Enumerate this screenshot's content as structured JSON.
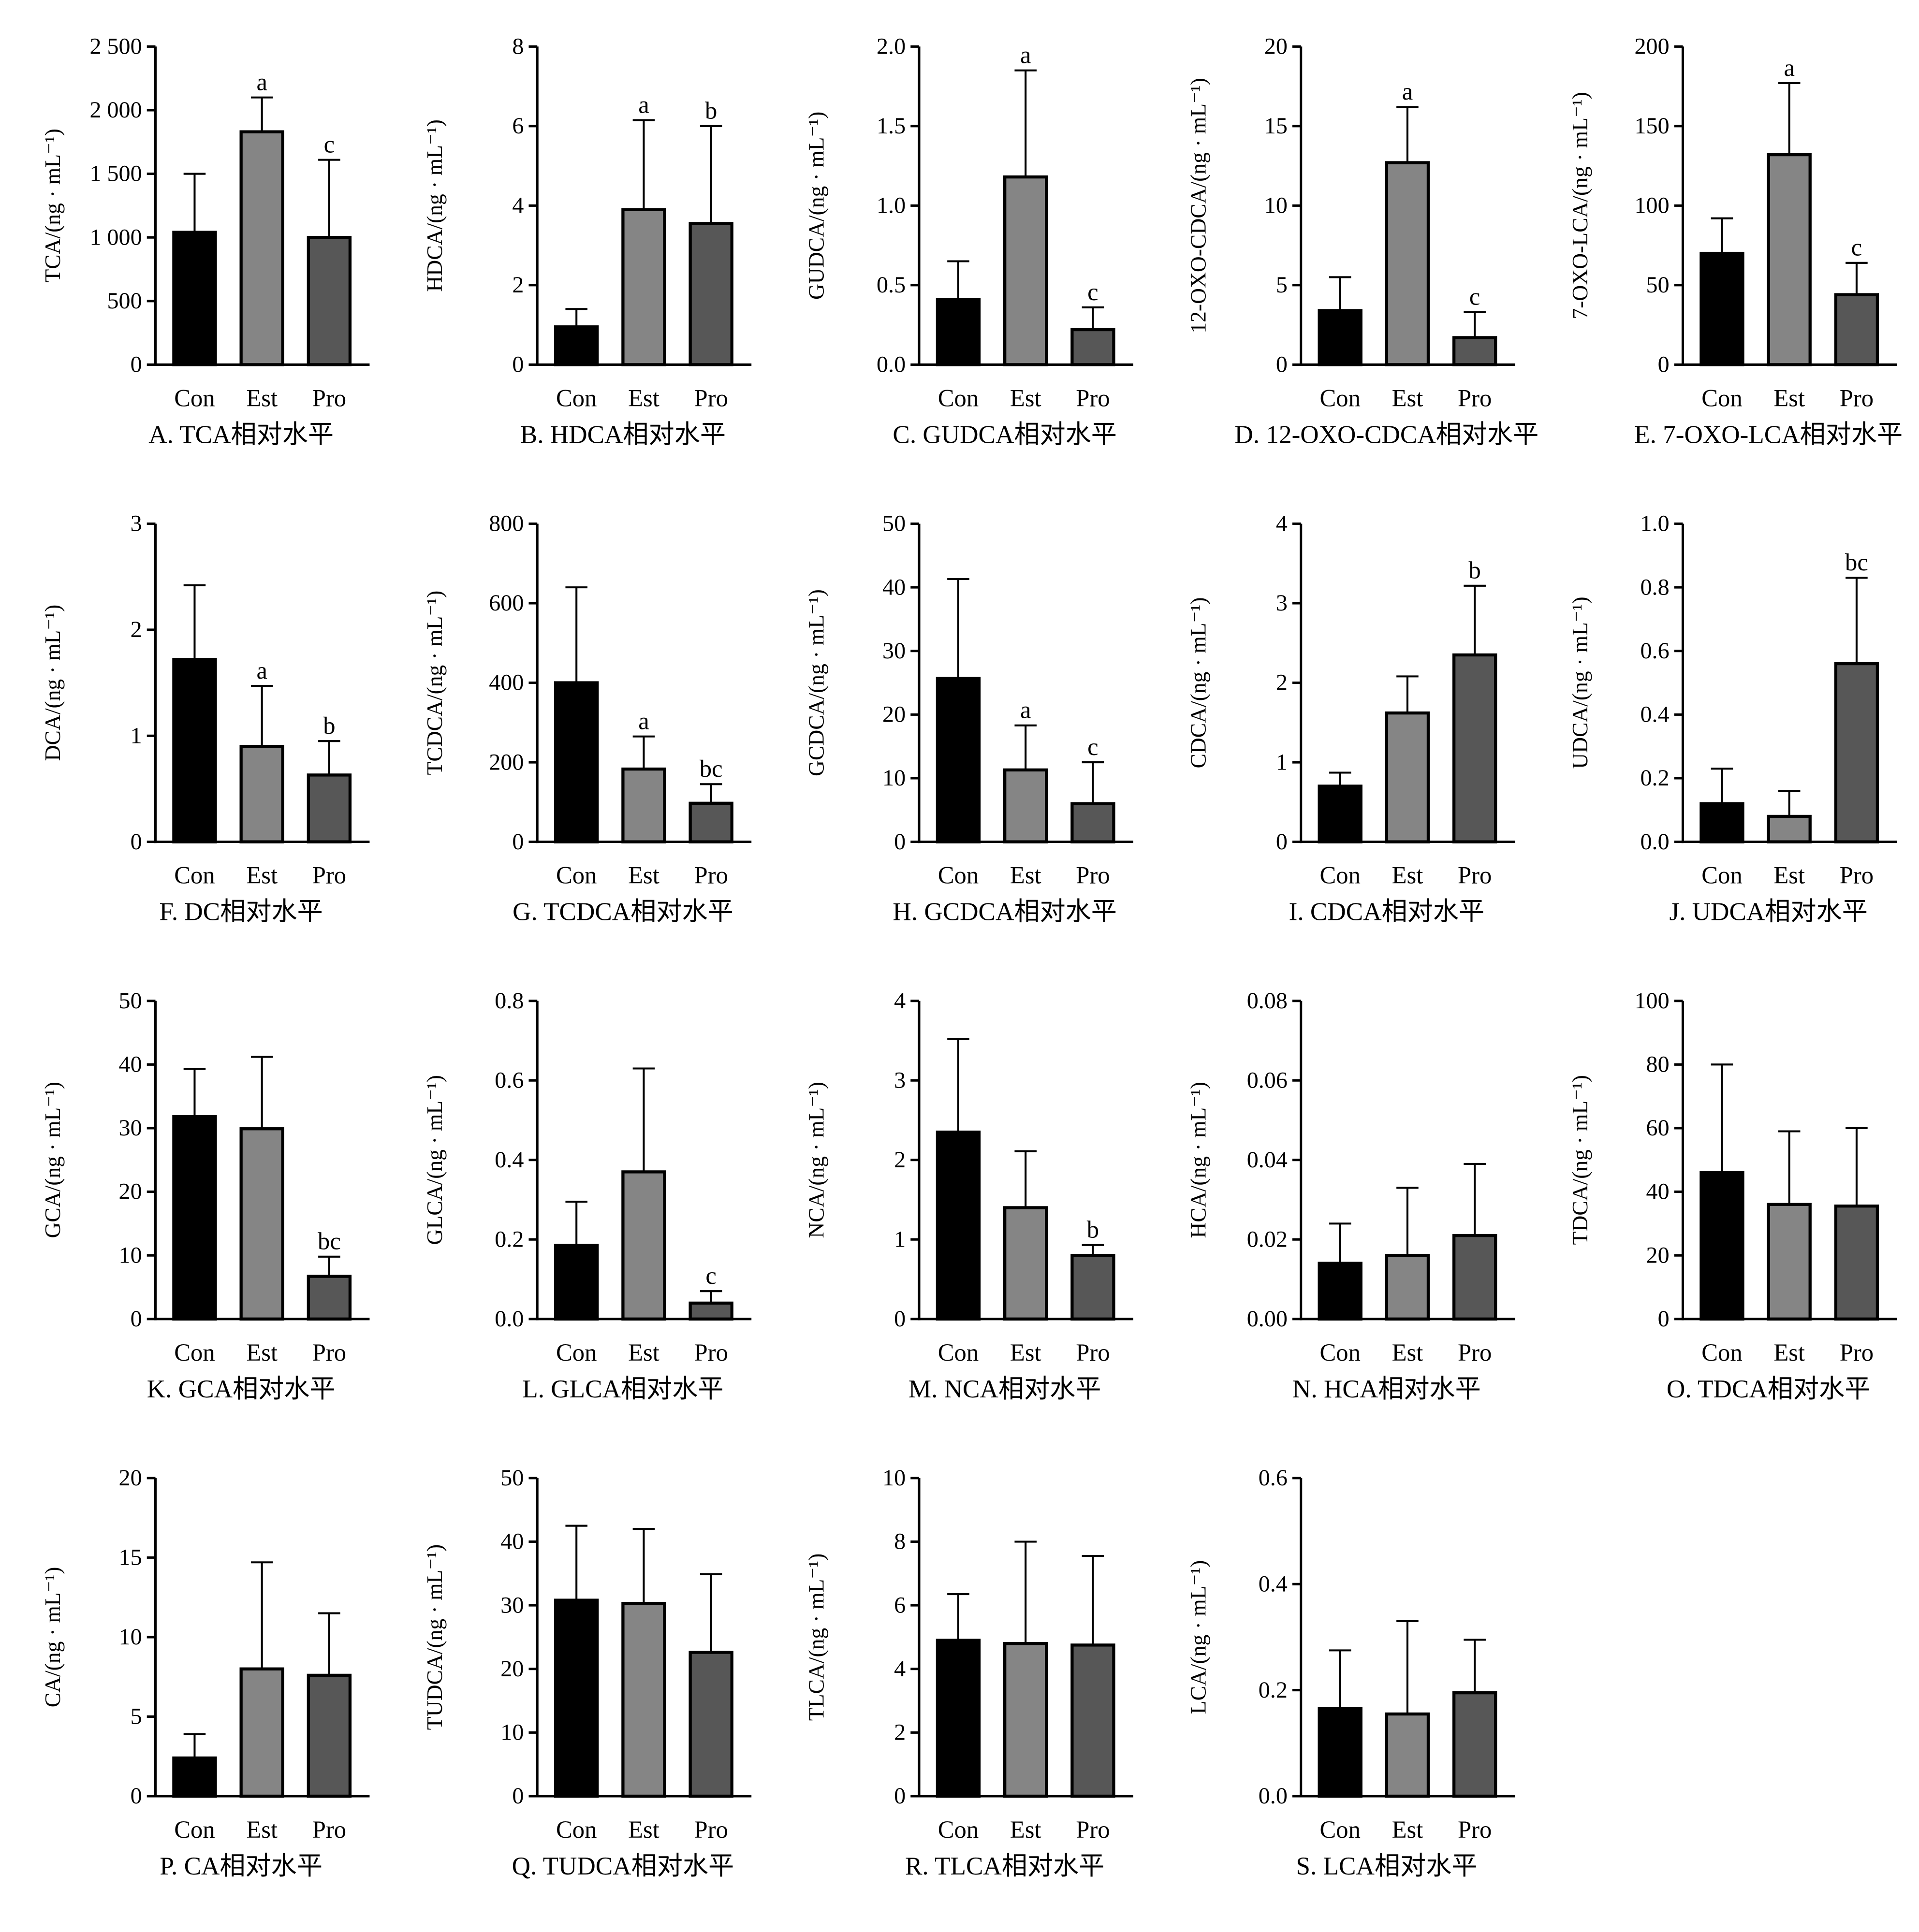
{
  "categories": [
    "Con",
    "Est",
    "Pro"
  ],
  "colors": {
    "Con": "#000000",
    "Est": "#858585",
    "Pro": "#575757"
  },
  "chart_data": [
    {
      "type": "bar",
      "title": "A. TCA相对水平",
      "ylabel": "TCA/(ng · mL⁻¹)",
      "ylim": [
        0,
        2500
      ],
      "yticks": [
        0,
        500,
        1000,
        1500,
        2000,
        2500
      ],
      "ytick_labels": [
        "0",
        "500",
        "1 000",
        "1 500",
        "2 000",
        "2 500"
      ],
      "values": [
        1040,
        1830,
        1000
      ],
      "error_upper": [
        1500,
        2100,
        1610
      ],
      "significance": [
        "",
        "a",
        "c"
      ]
    },
    {
      "type": "bar",
      "title": "B. HDCA相对水平",
      "ylabel": "HDCA/(ng · mL⁻¹)",
      "ylim": [
        0,
        8
      ],
      "yticks": [
        0,
        2,
        4,
        6,
        8
      ],
      "ytick_labels": [
        "0",
        "2",
        "4",
        "6",
        "8"
      ],
      "values": [
        0.95,
        3.9,
        3.55
      ],
      "error_upper": [
        1.4,
        6.15,
        6.0
      ],
      "significance": [
        "",
        "a",
        "b"
      ]
    },
    {
      "type": "bar",
      "title": "C. GUDCA相对水平",
      "ylabel": "GUDCA/(ng · mL⁻¹)",
      "ylim": [
        0,
        2
      ],
      "yticks": [
        0,
        0.5,
        1,
        1.5,
        2
      ],
      "ytick_labels": [
        "0.0",
        "0.5",
        "1.0",
        "1.5",
        "2.0"
      ],
      "values": [
        0.41,
        1.18,
        0.22
      ],
      "error_upper": [
        0.65,
        1.85,
        0.36
      ],
      "significance": [
        "",
        "a",
        "c"
      ]
    },
    {
      "type": "bar",
      "title": "D. 12-OXO-CDCA相对水平",
      "ylabel": "12-OXO-CDCA/(ng · mL⁻¹)",
      "ylim": [
        0,
        20
      ],
      "yticks": [
        0,
        5,
        10,
        15,
        20
      ],
      "ytick_labels": [
        "0",
        "5",
        "10",
        "15",
        "20"
      ],
      "values": [
        3.4,
        12.7,
        1.7
      ],
      "error_upper": [
        5.5,
        16.2,
        3.3
      ],
      "significance": [
        "",
        "a",
        "c"
      ]
    },
    {
      "type": "bar",
      "title": "E. 7-OXO-LCA相对水平",
      "ylabel": "7-OXO-LCA/(ng · mL⁻¹)",
      "ylim": [
        0,
        200
      ],
      "yticks": [
        0,
        50,
        100,
        150,
        200
      ],
      "ytick_labels": [
        "0",
        "50",
        "100",
        "150",
        "200"
      ],
      "values": [
        70,
        132,
        44
      ],
      "error_upper": [
        92,
        177,
        64
      ],
      "significance": [
        "",
        "a",
        "c"
      ]
    },
    {
      "type": "bar",
      "title": "F. DC相对水平",
      "ylabel": "DCA/(ng · mL⁻¹)",
      "ylim": [
        0,
        3
      ],
      "yticks": [
        0,
        1,
        2,
        3
      ],
      "ytick_labels": [
        "0",
        "1",
        "2",
        "3"
      ],
      "values": [
        1.72,
        0.9,
        0.63
      ],
      "error_upper": [
        2.42,
        1.47,
        0.95
      ],
      "significance": [
        "",
        "a",
        "b"
      ]
    },
    {
      "type": "bar",
      "title": "G. TCDCA相对水平",
      "ylabel": "TCDCA/(ng · mL⁻¹)",
      "ylim": [
        0,
        800
      ],
      "yticks": [
        0,
        200,
        400,
        600,
        800
      ],
      "ytick_labels": [
        "0",
        "200",
        "400",
        "600",
        "800"
      ],
      "values": [
        400,
        183,
        97
      ],
      "error_upper": [
        640,
        265,
        145
      ],
      "significance": [
        "",
        "a",
        "bc"
      ]
    },
    {
      "type": "bar",
      "title": "H. GCDCA相对水平",
      "ylabel": "GCDCA/(ng · mL⁻¹)",
      "ylim": [
        0,
        50
      ],
      "yticks": [
        0,
        10,
        20,
        30,
        40,
        50
      ],
      "ytick_labels": [
        "0",
        "10",
        "20",
        "30",
        "40",
        "50"
      ],
      "values": [
        25.7,
        11.3,
        6
      ],
      "error_upper": [
        41.3,
        18.3,
        12.5
      ],
      "significance": [
        "",
        "a",
        "c"
      ]
    },
    {
      "type": "bar",
      "title": "I. CDCA相对水平",
      "ylabel": "CDCA/(ng · mL⁻¹)",
      "ylim": [
        0,
        4
      ],
      "yticks": [
        0,
        1,
        2,
        3,
        4
      ],
      "ytick_labels": [
        "0",
        "1",
        "2",
        "3",
        "4"
      ],
      "values": [
        0.7,
        1.62,
        2.35
      ],
      "error_upper": [
        0.87,
        2.08,
        3.22
      ],
      "significance": [
        "",
        "",
        "b"
      ]
    },
    {
      "type": "bar",
      "title": "J. UDCA相对水平",
      "ylabel": "UDCA/(ng · mL⁻¹)",
      "ylim": [
        0,
        1
      ],
      "yticks": [
        0,
        0.2,
        0.4,
        0.6,
        0.8,
        1
      ],
      "ytick_labels": [
        "0.0",
        "0.2",
        "0.4",
        "0.6",
        "0.8",
        "1.0"
      ],
      "values": [
        0.12,
        0.08,
        0.56
      ],
      "error_upper": [
        0.23,
        0.16,
        0.83
      ],
      "significance": [
        "",
        "",
        "bc"
      ]
    },
    {
      "type": "bar",
      "title": "K. GCA相对水平",
      "ylabel": "GCA/(ng · mL⁻¹)",
      "ylim": [
        0,
        50
      ],
      "yticks": [
        0,
        10,
        20,
        30,
        40,
        50
      ],
      "ytick_labels": [
        "0",
        "10",
        "20",
        "30",
        "40",
        "50"
      ],
      "values": [
        31.8,
        29.9,
        6.7
      ],
      "error_upper": [
        39.3,
        41.2,
        9.8
      ],
      "significance": [
        "",
        "",
        "bc"
      ]
    },
    {
      "type": "bar",
      "title": "L. GLCA相对水平",
      "ylabel": "GLCA/(ng · mL⁻¹)",
      "ylim": [
        0,
        0.8
      ],
      "yticks": [
        0,
        0.2,
        0.4,
        0.6,
        0.8
      ],
      "ytick_labels": [
        "0.0",
        "0.2",
        "0.4",
        "0.6",
        "0.8"
      ],
      "values": [
        0.185,
        0.37,
        0.04
      ],
      "error_upper": [
        0.295,
        0.63,
        0.07
      ],
      "significance": [
        "",
        "",
        "c"
      ]
    },
    {
      "type": "bar",
      "title": "M. NCA相对水平",
      "ylabel": "NCA/(ng · mL⁻¹)",
      "ylim": [
        0,
        4
      ],
      "yticks": [
        0,
        1,
        2,
        3,
        4
      ],
      "ytick_labels": [
        "0",
        "1",
        "2",
        "3",
        "4"
      ],
      "values": [
        2.35,
        1.4,
        0.8
      ],
      "error_upper": [
        3.52,
        2.11,
        0.93
      ],
      "significance": [
        "",
        "",
        "b"
      ]
    },
    {
      "type": "bar",
      "title": "N. HCA相对水平",
      "ylabel": "HCA/(ng · mL⁻¹)",
      "ylim": [
        0,
        0.08
      ],
      "yticks": [
        0,
        0.02,
        0.04,
        0.06,
        0.08
      ],
      "ytick_labels": [
        "0.00",
        "0.02",
        "0.04",
        "0.06",
        "0.08"
      ],
      "values": [
        0.014,
        0.016,
        0.021
      ],
      "error_upper": [
        0.024,
        0.033,
        0.039
      ],
      "significance": [
        "",
        "",
        ""
      ]
    },
    {
      "type": "bar",
      "title": "O. TDCA相对水平",
      "ylabel": "TDCA/(ng · mL⁻¹)",
      "ylim": [
        0,
        100
      ],
      "yticks": [
        0,
        20,
        40,
        60,
        80,
        100
      ],
      "ytick_labels": [
        "0",
        "20",
        "40",
        "60",
        "80",
        "100"
      ],
      "values": [
        46,
        36,
        35.5
      ],
      "error_upper": [
        80,
        59,
        60
      ],
      "significance": [
        "",
        "",
        ""
      ]
    },
    {
      "type": "bar",
      "title": "P. CA相对水平",
      "ylabel": "CA/(ng · mL⁻¹)",
      "ylim": [
        0,
        20
      ],
      "yticks": [
        0,
        5,
        10,
        15,
        20
      ],
      "ytick_labels": [
        "0",
        "5",
        "10",
        "15",
        "20"
      ],
      "values": [
        2.4,
        8.0,
        7.6
      ],
      "error_upper": [
        3.9,
        14.7,
        11.5
      ],
      "significance": [
        "",
        "",
        ""
      ]
    },
    {
      "type": "bar",
      "title": "Q. TUDCA相对水平",
      "ylabel": "TUDCA/(ng · mL⁻¹)",
      "ylim": [
        0,
        50
      ],
      "yticks": [
        0,
        10,
        20,
        30,
        40,
        50
      ],
      "ytick_labels": [
        "0",
        "10",
        "20",
        "30",
        "40",
        "50"
      ],
      "values": [
        30.8,
        30.3,
        22.6
      ],
      "error_upper": [
        42.5,
        42,
        34.9
      ],
      "significance": [
        "",
        "",
        ""
      ]
    },
    {
      "type": "bar",
      "title": "R. TLCA相对水平",
      "ylabel": "TLCA/(ng · mL⁻¹)",
      "ylim": [
        0,
        10
      ],
      "yticks": [
        0,
        2,
        4,
        6,
        8,
        10
      ],
      "ytick_labels": [
        "0",
        "2",
        "4",
        "6",
        "8",
        "10"
      ],
      "values": [
        4.9,
        4.8,
        4.75
      ],
      "error_upper": [
        6.35,
        8.0,
        7.55
      ],
      "significance": [
        "",
        "",
        ""
      ]
    },
    {
      "type": "bar",
      "title": "S. LCA相对水平",
      "ylabel": "LCA/(ng · mL⁻¹)",
      "ylim": [
        0,
        0.6
      ],
      "yticks": [
        0,
        0.2,
        0.4,
        0.6
      ],
      "ytick_labels": [
        "0.0",
        "0.2",
        "0.4",
        "0.6"
      ],
      "values": [
        0.165,
        0.155,
        0.195
      ],
      "error_upper": [
        0.275,
        0.33,
        0.295
      ],
      "significance": [
        "",
        "",
        ""
      ]
    }
  ]
}
